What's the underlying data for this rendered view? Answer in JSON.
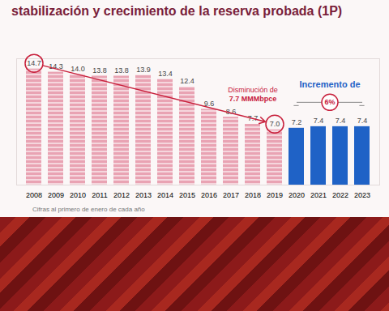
{
  "chart_data": {
    "type": "bar",
    "title": "stabilización y crecimiento de la reserva probada (1P)",
    "categories": [
      "2008",
      "2009",
      "2010",
      "2011",
      "2012",
      "2013",
      "2014",
      "2015",
      "2016",
      "2017",
      "2018",
      "2019",
      "2020",
      "2021",
      "2022",
      "2023"
    ],
    "values": [
      14.7,
      14.3,
      14.0,
      13.8,
      13.8,
      13.9,
      13.4,
      12.4,
      9.6,
      8.6,
      7.7,
      7.0,
      7.2,
      7.4,
      7.4,
      7.4
    ],
    "value_labels": [
      "14.7",
      "14.3",
      "14.0",
      "13.8",
      "13.8",
      "13.9",
      "13.4",
      "12.4",
      "9.6",
      "8.6",
      "7.7",
      "7.0",
      "7.2",
      "7.4",
      "7.4",
      "7.4"
    ],
    "colors": [
      "#e9a3b3",
      "#e9a3b3",
      "#e9a3b3",
      "#e9a3b3",
      "#e9a3b3",
      "#e9a3b3",
      "#e9a3b3",
      "#e9a3b3",
      "#e9a3b3",
      "#e9a3b3",
      "#e9a3b3",
      "#e9a3b3",
      "#1f62c6",
      "#1f62c6",
      "#1f62c6",
      "#1f62c6"
    ],
    "ylim": [
      0,
      16
    ],
    "yticks": [],
    "data_labels": true,
    "tick_labels": "x",
    "annotations": [
      "Disminución de",
      "7.7 MMMbpce",
      "Incremento de",
      "6%"
    ],
    "caption": "Cifras al primero de enero de cada año"
  }
}
